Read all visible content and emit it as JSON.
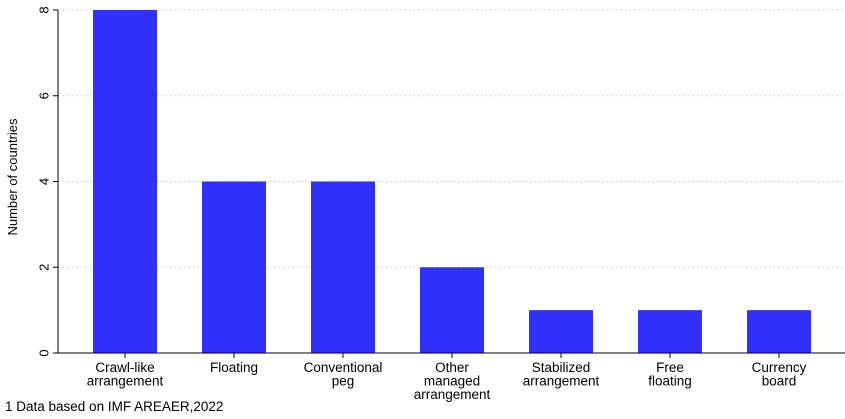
{
  "chart_data": {
    "type": "bar",
    "title": "",
    "xlabel": "",
    "ylabel": "Number of countries",
    "ylim": [
      0,
      8
    ],
    "yticks": [
      0,
      2,
      4,
      6,
      8
    ],
    "grid": true,
    "bar_color": "#3030ff",
    "categories": [
      [
        "Crawl-like",
        "arrangement"
      ],
      [
        "Floating"
      ],
      [
        "Conventional",
        "peg"
      ],
      [
        "Other",
        "managed",
        "arrangement"
      ],
      [
        "Stabilized",
        "arrangement"
      ],
      [
        "Free",
        "floating"
      ],
      [
        "Currency",
        "board"
      ]
    ],
    "values": [
      8,
      4,
      4,
      2,
      1,
      1,
      1
    ]
  },
  "note": "1 Data based on IMF AREAER,2022"
}
